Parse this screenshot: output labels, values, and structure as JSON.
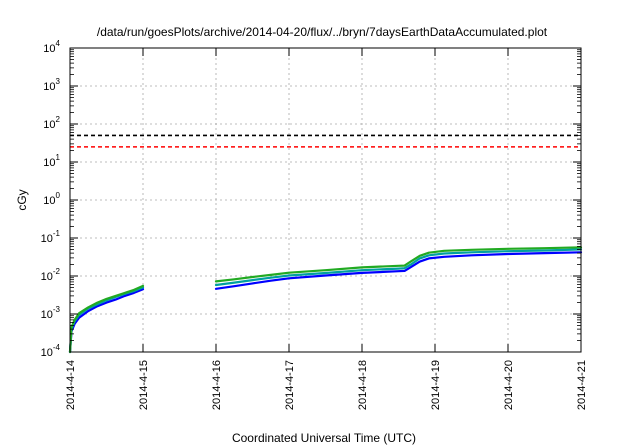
{
  "chart_data": {
    "type": "line",
    "title": "/data/run/goesPlots/archive/2014-04-20/flux/../bryn/7daysEarthDataAccumulated.plot",
    "xlabel": "Coordinated Universal Time (UTC)",
    "ylabel": "cGy",
    "x_ticks": [
      "2014-4-14",
      "2014-4-15",
      "2014-4-16",
      "2014-4-17",
      "2014-4-18",
      "2014-4-19",
      "2014-4-20",
      "2014-4-21"
    ],
    "xlim": [
      "2014-04-14",
      "2014-04-21"
    ],
    "ylim": [
      0.0001,
      10000
    ],
    "y_scale": "log",
    "y_ticks": [
      {
        "value": 0.0001,
        "base": "10",
        "exp": "-4"
      },
      {
        "value": 0.001,
        "base": "10",
        "exp": "-3"
      },
      {
        "value": 0.01,
        "base": "10",
        "exp": "-2"
      },
      {
        "value": 0.1,
        "base": "10",
        "exp": "-1"
      },
      {
        "value": 1,
        "base": "10",
        "exp": "0"
      },
      {
        "value": 10,
        "base": "10",
        "exp": "1"
      },
      {
        "value": 100,
        "base": "10",
        "exp": "2"
      },
      {
        "value": 1000,
        "base": "10",
        "exp": "3"
      },
      {
        "value": 10000,
        "base": "10",
        "exp": "4"
      }
    ],
    "grid": true,
    "reference_lines": [
      {
        "y": 50,
        "color": "#000000",
        "style": "dashed"
      },
      {
        "y": 25,
        "color": "#ff0000",
        "style": "dashed"
      }
    ],
    "series": [
      {
        "color": "#0000ff",
        "segments": [
          [
            [
              "2014-04-14 00:00",
              0.0001
            ],
            [
              "2014-04-14 00:30",
              0.00035
            ],
            [
              "2014-04-14 01:30",
              0.00055
            ],
            [
              "2014-04-14 03:00",
              0.0008
            ],
            [
              "2014-04-14 06:00",
              0.0012
            ],
            [
              "2014-04-14 09:00",
              0.0016
            ],
            [
              "2014-04-14 12:00",
              0.002
            ],
            [
              "2014-04-14 15:00",
              0.0024
            ],
            [
              "2014-04-14 18:00",
              0.003
            ],
            [
              "2014-04-14 21:00",
              0.0036
            ],
            [
              "2014-04-15 00:00",
              0.0045
            ]
          ],
          [
            [
              "2014-04-16 00:00",
              0.0046
            ],
            [
              "2014-04-16 06:00",
              0.0054
            ],
            [
              "2014-04-16 12:00",
              0.0064
            ],
            [
              "2014-04-16 18:00",
              0.0075
            ],
            [
              "2014-04-17 00:00",
              0.0087
            ],
            [
              "2014-04-17 12:00",
              0.0103
            ],
            [
              "2014-04-18 00:00",
              0.0121
            ],
            [
              "2014-04-18 12:00",
              0.0134
            ],
            [
              "2014-04-18 14:00",
              0.0136
            ],
            [
              "2014-04-18 16:00",
              0.017
            ],
            [
              "2014-04-18 19:00",
              0.024
            ],
            [
              "2014-04-18 22:00",
              0.029
            ],
            [
              "2014-04-19 03:00",
              0.032
            ],
            [
              "2014-04-19 12:00",
              0.035
            ],
            [
              "2014-04-20 00:00",
              0.038
            ],
            [
              "2014-04-20 12:00",
              0.04
            ],
            [
              "2014-04-21 00:00",
              0.042
            ]
          ]
        ]
      },
      {
        "color": "#00a0a0",
        "segments": [
          [
            [
              "2014-04-14 00:00",
              0.0001
            ],
            [
              "2014-04-14 00:30",
              0.0004
            ],
            [
              "2014-04-14 01:30",
              0.00065
            ],
            [
              "2014-04-14 03:00",
              0.00095
            ],
            [
              "2014-04-14 06:00",
              0.0014
            ],
            [
              "2014-04-14 09:00",
              0.0018
            ],
            [
              "2014-04-14 12:00",
              0.0023
            ],
            [
              "2014-04-14 15:00",
              0.0028
            ],
            [
              "2014-04-14 18:00",
              0.0034
            ],
            [
              "2014-04-14 21:00",
              0.004
            ],
            [
              "2014-04-15 00:00",
              0.005
            ]
          ],
          [
            [
              "2014-04-16 00:00",
              0.0058
            ],
            [
              "2014-04-16 06:00",
              0.0067
            ],
            [
              "2014-04-16 12:00",
              0.0078
            ],
            [
              "2014-04-16 18:00",
              0.009
            ],
            [
              "2014-04-17 00:00",
              0.0103
            ],
            [
              "2014-04-17 12:00",
              0.012
            ],
            [
              "2014-04-18 00:00",
              0.0142
            ],
            [
              "2014-04-18 12:00",
              0.0157
            ],
            [
              "2014-04-18 14:00",
              0.016
            ],
            [
              "2014-04-18 16:00",
              0.02
            ],
            [
              "2014-04-18 19:00",
              0.029
            ],
            [
              "2014-04-18 22:00",
              0.035
            ],
            [
              "2014-04-19 03:00",
              0.039
            ],
            [
              "2014-04-19 12:00",
              0.042
            ],
            [
              "2014-04-20 00:00",
              0.045
            ],
            [
              "2014-04-20 12:00",
              0.047
            ],
            [
              "2014-04-21 00:00",
              0.05
            ]
          ]
        ]
      },
      {
        "color": "#22aa22",
        "segments": [
          [
            [
              "2014-04-14 00:00",
              0.0001
            ],
            [
              "2014-04-14 00:30",
              0.00045
            ],
            [
              "2014-04-14 01:30",
              0.0007
            ],
            [
              "2014-04-14 03:00",
              0.00105
            ],
            [
              "2014-04-14 06:00",
              0.0015
            ],
            [
              "2014-04-14 09:00",
              0.002
            ],
            [
              "2014-04-14 12:00",
              0.0025
            ],
            [
              "2014-04-14 15:00",
              0.003
            ],
            [
              "2014-04-14 18:00",
              0.0036
            ],
            [
              "2014-04-14 21:00",
              0.0043
            ],
            [
              "2014-04-15 00:00",
              0.0055
            ]
          ],
          [
            [
              "2014-04-16 00:00",
              0.0072
            ],
            [
              "2014-04-16 06:00",
              0.0082
            ],
            [
              "2014-04-16 12:00",
              0.0094
            ],
            [
              "2014-04-16 18:00",
              0.0107
            ],
            [
              "2014-04-17 00:00",
              0.0122
            ],
            [
              "2014-04-17 12:00",
              0.0142
            ],
            [
              "2014-04-18 00:00",
              0.0168
            ],
            [
              "2014-04-18 12:00",
              0.0185
            ],
            [
              "2014-04-18 14:00",
              0.0188
            ],
            [
              "2014-04-18 16:00",
              0.024
            ],
            [
              "2014-04-18 19:00",
              0.034
            ],
            [
              "2014-04-18 22:00",
              0.041
            ],
            [
              "2014-04-19 03:00",
              0.046
            ],
            [
              "2014-04-19 12:00",
              0.049
            ],
            [
              "2014-04-20 00:00",
              0.052
            ],
            [
              "2014-04-20 12:00",
              0.054
            ],
            [
              "2014-04-21 00:00",
              0.057
            ]
          ]
        ]
      }
    ]
  }
}
